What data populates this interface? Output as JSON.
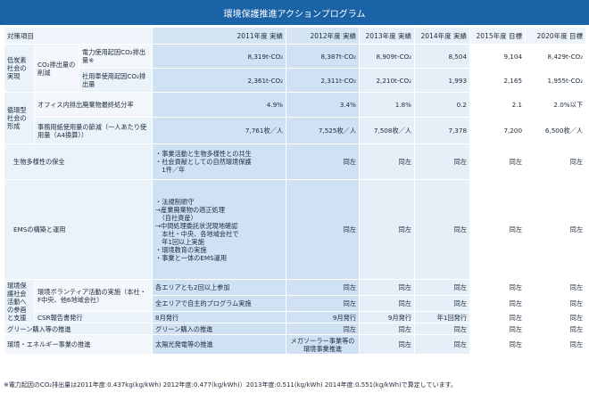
{
  "title": "環境保護推進アクションプログラム",
  "headers": {
    "item": "対策項目",
    "y2011": "2011年度 実績",
    "y2012": "2012年度 実績",
    "y2013": "2013年度 実績",
    "y2014": "2014年度 実績",
    "y2015": "2015年度 目標",
    "y2020": "2020年度 目標"
  },
  "groups": {
    "low_carbon": "低炭素社会の実現",
    "recycling": "循環型社会の形成",
    "eco_support": "環境保護社会活動への参画と支援"
  },
  "rows": {
    "co2": {
      "label": "CO₂排出量の削減",
      "power": {
        "label": "電力使用起因CO₂排出量※",
        "v2011": "8,319t-CO₂",
        "v2012": "8,387t-CO₂",
        "v2013": "8,909t-CO₂",
        "v2014": "8,504",
        "v2015": "9,104",
        "v2020": "8,429t-CO₂"
      },
      "car": {
        "label": "社用車使用起因CO₂排出量",
        "v2011": "2,361t-CO₂",
        "v2012": "2,311t-CO₂",
        "v2013": "2,210t-CO₂",
        "v2014": "1,993",
        "v2015": "2,165",
        "v2020": "1,955t-CO₂"
      }
    },
    "waste": {
      "label": "オフィス内排出廃棄物最終処分率",
      "v2011": "4.9%",
      "v2012": "3.4%",
      "v2013": "1.8%",
      "v2014": "0.2",
      "v2015": "2.1",
      "v2020": "2.0%以下"
    },
    "paper": {
      "label": "事務用紙使用量の節減（一人あたり使用量（A4換算））",
      "v2011": "7,761枚／人",
      "v2012": "7,525枚／人",
      "v2013": "7,508枚／人",
      "v2014": "7,378",
      "v2015": "7,200",
      "v2020": "6,500枚／人"
    },
    "biodiversity": {
      "label": "生物多様性の保全",
      "lines": [
        "・事業活動と生物多様性との共生",
        "・社会貢献としての自然環境保護",
        "　1件／年"
      ],
      "same": "同左"
    },
    "ems": {
      "label": "EMSの構築と運用",
      "lines": [
        "・法規制順守",
        "→産業廃棄物の適正処理",
        "　（自社資産）",
        "→中間処理委託状況現地確認",
        "　本社・中央、各地域会社で",
        "　年1回以上実施",
        "・環境教育の実施",
        "・事業と一体のEMS運用"
      ],
      "same": "同左"
    },
    "volunteer": {
      "label": "環境ボランティア活動の実施（本社・F中央、他6地域会社）",
      "line1": "各エリアとも2回以上参加",
      "line2": "全エリアで自主的プログラム実施",
      "same": "同左"
    },
    "csr": {
      "label": "CSR報告書発行",
      "v2011": "8月発行",
      "v2012": "9月発行",
      "v2013": "9月発行",
      "v2014": "年1回発行",
      "same": "同左"
    },
    "green": {
      "label": "グリーン購入等の推進",
      "v2011": "グリーン購入の推進",
      "same": "同左"
    },
    "energy": {
      "label": "環境・エネルギー事業の推進",
      "v2011": "太陽光発電等の推進",
      "v2012": "メガソーラー事業等の環境事業推進",
      "same": "同左"
    }
  },
  "note": "※電力起因のCO₂排出量は2011年度:0.437kg(kg/kWh) 2012年度:0.477(kg/kWh)）2013年度:0.511(kg/kWh) 2014年度:0.551(kg/kWh)で算定しています。"
}
